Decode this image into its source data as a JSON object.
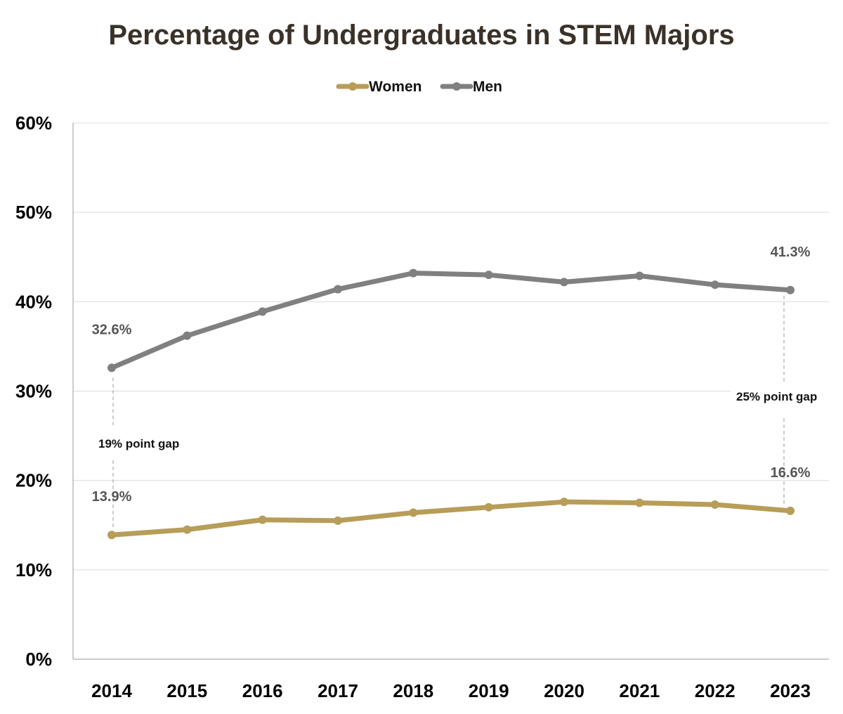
{
  "chart_data": {
    "type": "line",
    "title": "Percentage of Undergraduates in STEM Majors",
    "categories": [
      "2014",
      "2015",
      "2016",
      "2017",
      "2018",
      "2019",
      "2020",
      "2021",
      "2022",
      "2023"
    ],
    "series": [
      {
        "name": "Women",
        "color": "#B79D58",
        "values": [
          13.9,
          14.5,
          15.6,
          15.5,
          16.4,
          17.0,
          17.6,
          17.5,
          17.3,
          16.6
        ]
      },
      {
        "name": "Men",
        "color": "#808080",
        "values": [
          32.6,
          36.2,
          38.9,
          41.4,
          43.2,
          43.0,
          42.2,
          42.9,
          41.9,
          41.3
        ]
      }
    ],
    "ylim": [
      0,
      60
    ],
    "yticks": [
      "0%",
      "10%",
      "20%",
      "30%",
      "40%",
      "50%",
      "60%"
    ],
    "grid": true,
    "legend_position": "top",
    "data_labels": [
      {
        "series": "Men",
        "category": "2014",
        "text": "32.6%"
      },
      {
        "series": "Men",
        "category": "2023",
        "text": "41.3%"
      },
      {
        "series": "Women",
        "category": "2014",
        "text": "13.9%"
      },
      {
        "series": "Women",
        "category": "2023",
        "text": "16.6%"
      }
    ],
    "annotations": [
      {
        "category": "2014",
        "text": "19% point gap"
      },
      {
        "category": "2023",
        "text": "25% point gap"
      }
    ]
  }
}
